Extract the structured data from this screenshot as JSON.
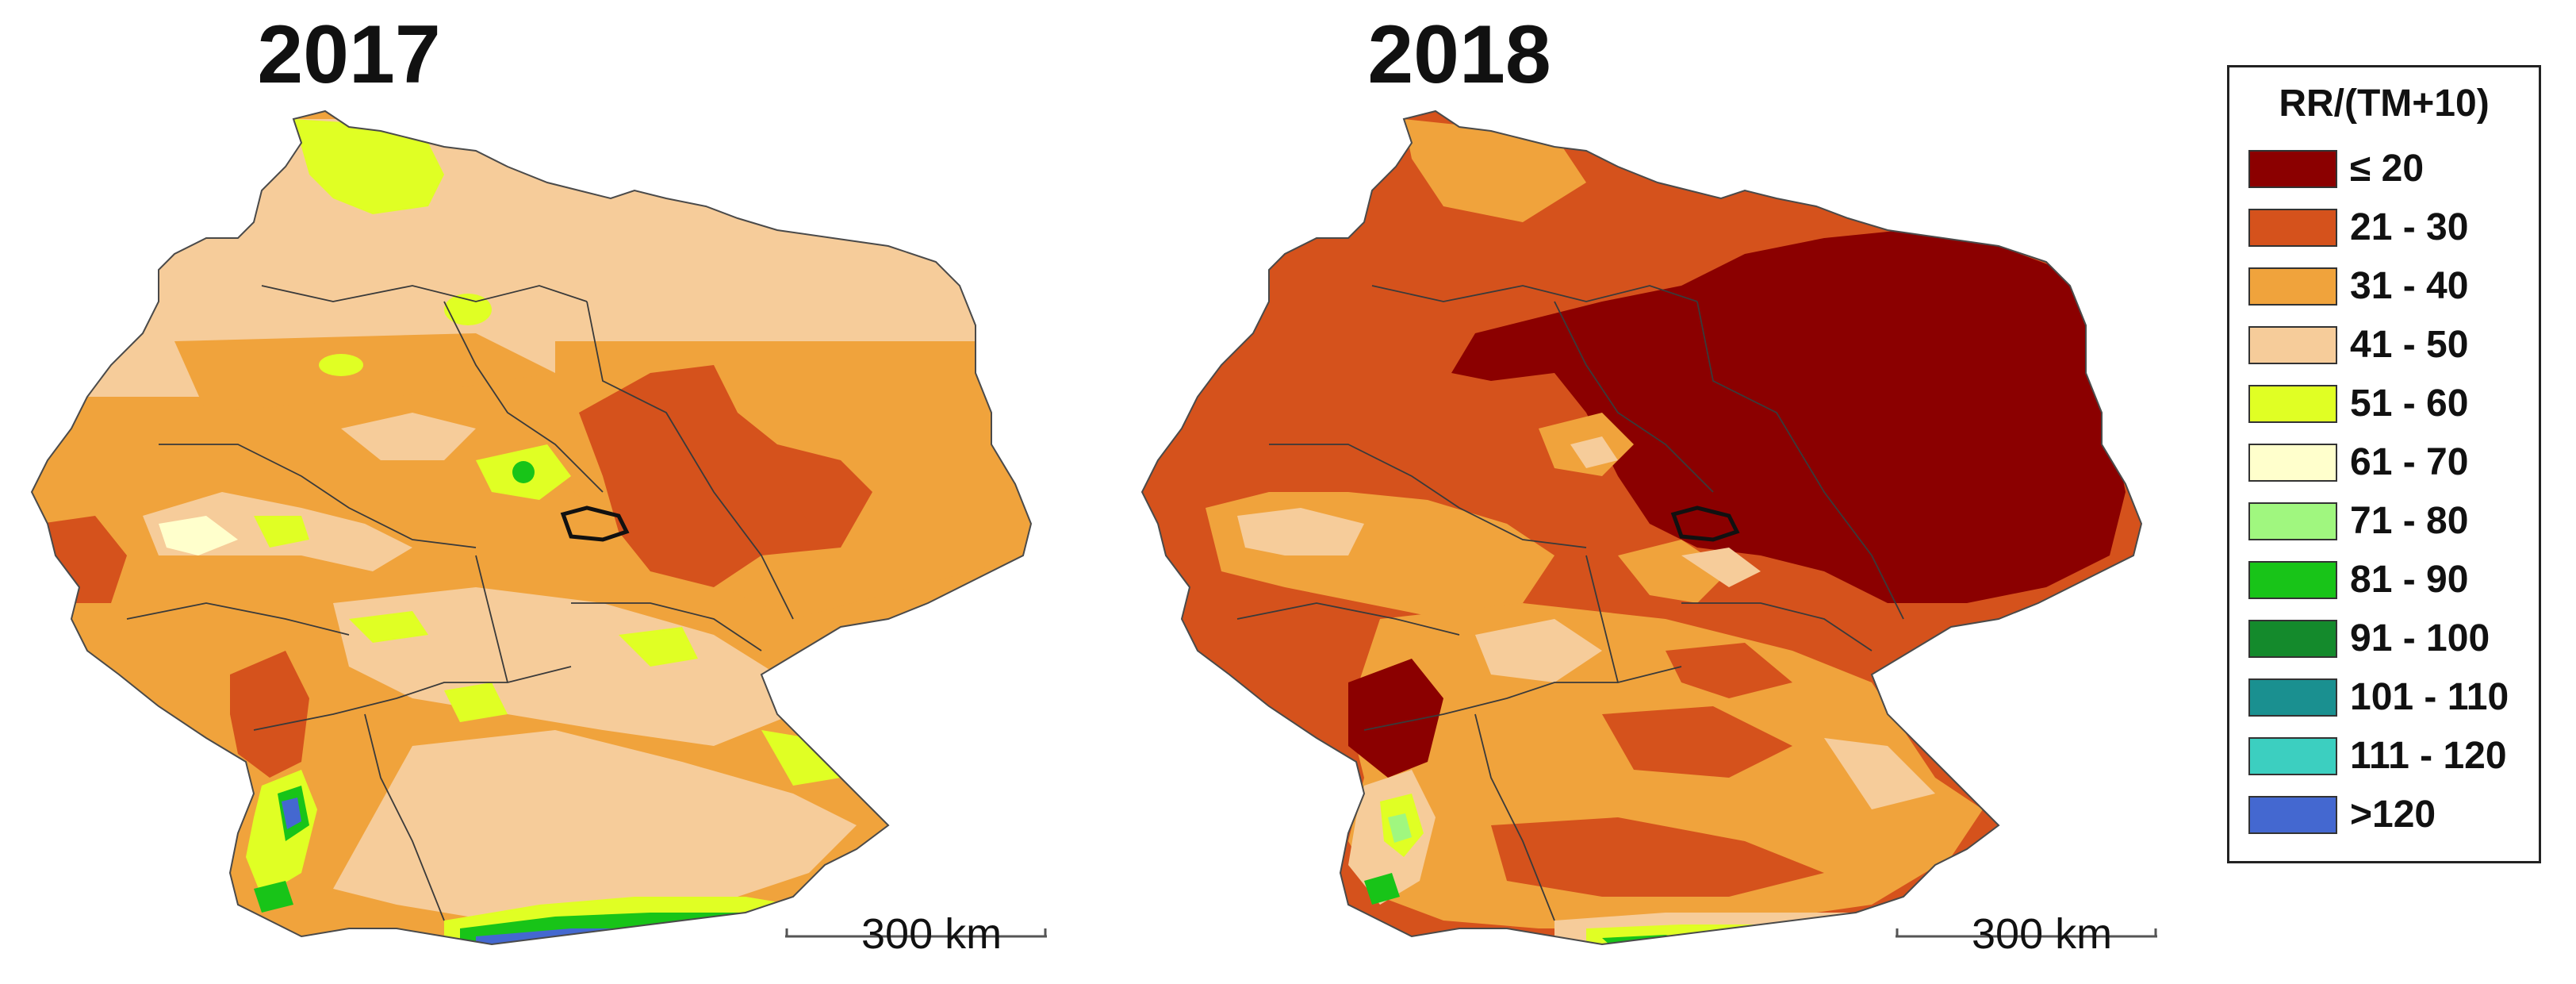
{
  "maps": [
    {
      "year": "2017",
      "scale_label": "300 km"
    },
    {
      "year": "2018",
      "scale_label": "300 km"
    }
  ],
  "legend": {
    "title": "RR/(TM+10)",
    "classes": [
      {
        "label": "≤ 20",
        "color": "#8b0000"
      },
      {
        "label": "21 - 30",
        "color": "#d5521c"
      },
      {
        "label": "31 - 40",
        "color": "#f0a33c"
      },
      {
        "label": "41 - 50",
        "color": "#f6cc9a"
      },
      {
        "label": "51 - 60",
        "color": "#e0ff24"
      },
      {
        "label": "61 - 70",
        "color": "#ffffcc"
      },
      {
        "label": "71 - 80",
        "color": "#a0f77f"
      },
      {
        "label": "81 - 90",
        "color": "#18c418"
      },
      {
        "label": "91 - 100",
        "color": "#148a2c"
      },
      {
        "label": "101 - 110",
        "color": "#1a9090"
      },
      {
        "label": "111 - 120",
        "color": "#3ccfc0"
      },
      {
        "label": ">120",
        "color": "#4468d0"
      }
    ]
  }
}
